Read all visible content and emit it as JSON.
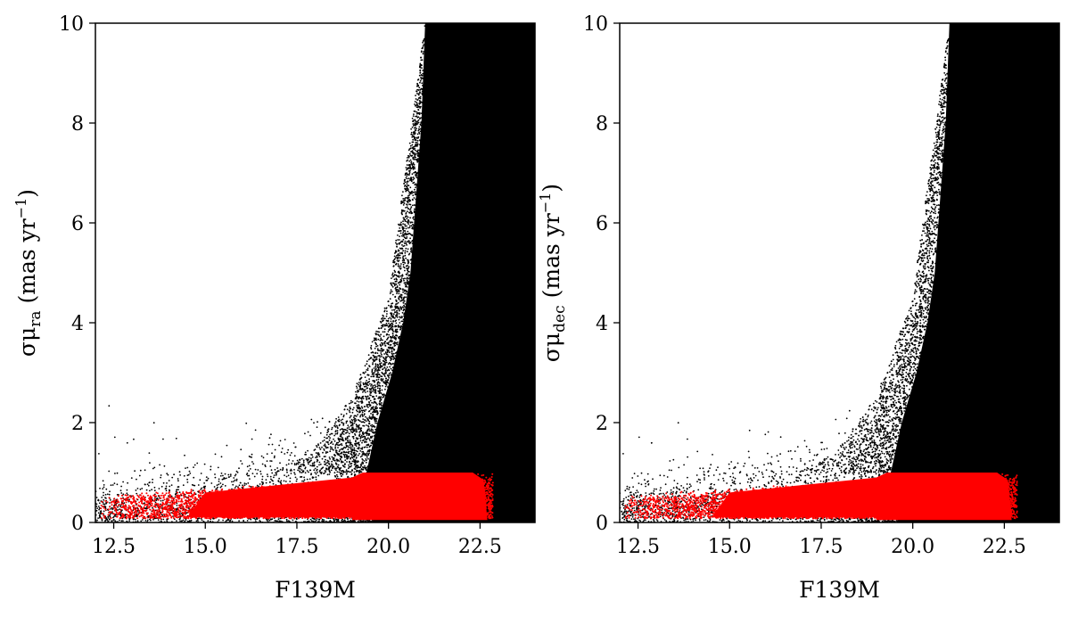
{
  "chart_data": [
    {
      "type": "scatter",
      "xlabel": "F139M",
      "ylabel_symbol": "σμ",
      "ylabel_subscript": "ra",
      "ylabel_units": "(mas yr",
      "ylabel_units_exp": "−1",
      "ylabel_units_close": ")",
      "xlim": [
        12.0,
        24.0
      ],
      "ylim": [
        0,
        10
      ],
      "xticks": [
        12.5,
        15.0,
        17.5,
        20.0,
        22.5
      ],
      "xtick_labels": [
        "12.5",
        "15.0",
        "17.5",
        "20.0",
        "22.5"
      ],
      "yticks": [
        0,
        2,
        4,
        6,
        8,
        10
      ],
      "ytick_labels": [
        "0",
        "2",
        "4",
        "6",
        "8",
        "10"
      ],
      "grid": false,
      "series": [
        {
          "color": "#000000",
          "description_points": [
            [
              12.5,
              0.3
            ],
            [
              13.0,
              0.4
            ],
            [
              14.0,
              0.5
            ],
            [
              15.0,
              0.6
            ],
            [
              16.0,
              0.8
            ],
            [
              17.0,
              1.0
            ],
            [
              18.0,
              1.5
            ],
            [
              19.0,
              2.5
            ],
            [
              20.0,
              4.5
            ],
            [
              21.0,
              10.0
            ],
            [
              22.0,
              10.0
            ],
            [
              23.0,
              10.0
            ],
            [
              24.0,
              10.0
            ]
          ]
        },
        {
          "color": "#ff0000",
          "description_points": [
            [
              12.2,
              0.15
            ],
            [
              12.5,
              0.6
            ],
            [
              14.0,
              0.7
            ],
            [
              16.0,
              0.8
            ],
            [
              18.0,
              0.9
            ],
            [
              19.3,
              1.0
            ],
            [
              22.0,
              1.0
            ],
            [
              22.8,
              0.9
            ],
            [
              22.9,
              0.1
            ]
          ]
        }
      ]
    },
    {
      "type": "scatter",
      "xlabel": "F139M",
      "ylabel_symbol": "σμ",
      "ylabel_subscript": "dec",
      "ylabel_units": "(mas yr",
      "ylabel_units_exp": "−1",
      "ylabel_units_close": ")",
      "xlim": [
        12.0,
        24.0
      ],
      "ylim": [
        0,
        10
      ],
      "xticks": [
        12.5,
        15.0,
        17.5,
        20.0,
        22.5
      ],
      "xtick_labels": [
        "12.5",
        "15.0",
        "17.5",
        "20.0",
        "22.5"
      ],
      "yticks": [
        0,
        2,
        4,
        6,
        8,
        10
      ],
      "ytick_labels": [
        "0",
        "2",
        "4",
        "6",
        "8",
        "10"
      ],
      "grid": false,
      "series": [
        {
          "color": "#000000",
          "description_points": [
            [
              12.5,
              0.3
            ],
            [
              13.0,
              0.4
            ],
            [
              14.0,
              0.5
            ],
            [
              15.0,
              0.6
            ],
            [
              16.0,
              0.8
            ],
            [
              17.0,
              1.0
            ],
            [
              18.0,
              1.5
            ],
            [
              19.0,
              2.5
            ],
            [
              20.0,
              4.5
            ],
            [
              21.0,
              10.0
            ],
            [
              22.0,
              10.0
            ],
            [
              23.0,
              10.0
            ],
            [
              24.0,
              10.0
            ]
          ]
        },
        {
          "color": "#ff0000",
          "description_points": [
            [
              12.2,
              0.15
            ],
            [
              12.5,
              0.6
            ],
            [
              14.0,
              0.7
            ],
            [
              16.0,
              0.8
            ],
            [
              18.0,
              0.9
            ],
            [
              19.3,
              1.0
            ],
            [
              22.0,
              1.0
            ],
            [
              22.8,
              0.9
            ],
            [
              22.9,
              0.1
            ]
          ]
        }
      ]
    }
  ]
}
